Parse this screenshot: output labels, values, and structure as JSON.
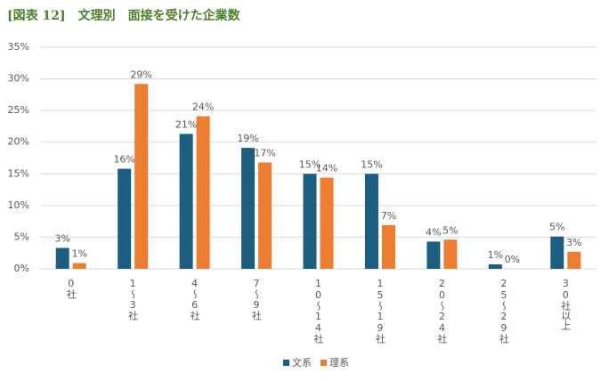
{
  "chart_data": {
    "type": "bar",
    "title": "[図表 12]　文理別　面接を受けた企業数",
    "categories": [
      "0社",
      "1～3社",
      "4～6社",
      "7～9社",
      "10～14社",
      "15～19社",
      "20～24社",
      "25～29社",
      "30社以上"
    ],
    "series": [
      {
        "name": "文系",
        "color": "#1b5e80",
        "values": [
          3.3,
          15.8,
          21.3,
          19.1,
          15.0,
          15.0,
          4.3,
          0.7,
          5.1
        ],
        "value_labels": [
          "3%",
          "16%",
          "21%",
          "19%",
          "15%",
          "15%",
          "4%",
          "1%",
          "5%"
        ]
      },
      {
        "name": "理系",
        "color": "#ed7d31",
        "values": [
          0.9,
          29.2,
          24.1,
          16.8,
          14.4,
          6.9,
          4.6,
          0,
          2.7
        ],
        "value_labels": [
          "1%",
          "29%",
          "24%",
          "17%",
          "14%",
          "7%",
          "5%",
          "0%",
          "3%"
        ]
      }
    ],
    "ylim": [
      0,
      35
    ],
    "yticks": [
      {
        "value": 0,
        "label": "0%"
      },
      {
        "value": 5,
        "label": "5%"
      },
      {
        "value": 10,
        "label": "10%"
      },
      {
        "value": 15,
        "label": "15%"
      },
      {
        "value": 20,
        "label": "20%"
      },
      {
        "value": 25,
        "label": "25%"
      },
      {
        "value": 30,
        "label": "30%"
      },
      {
        "value": 35,
        "label": "35%"
      }
    ],
    "grid": true,
    "legend": "bottom"
  }
}
